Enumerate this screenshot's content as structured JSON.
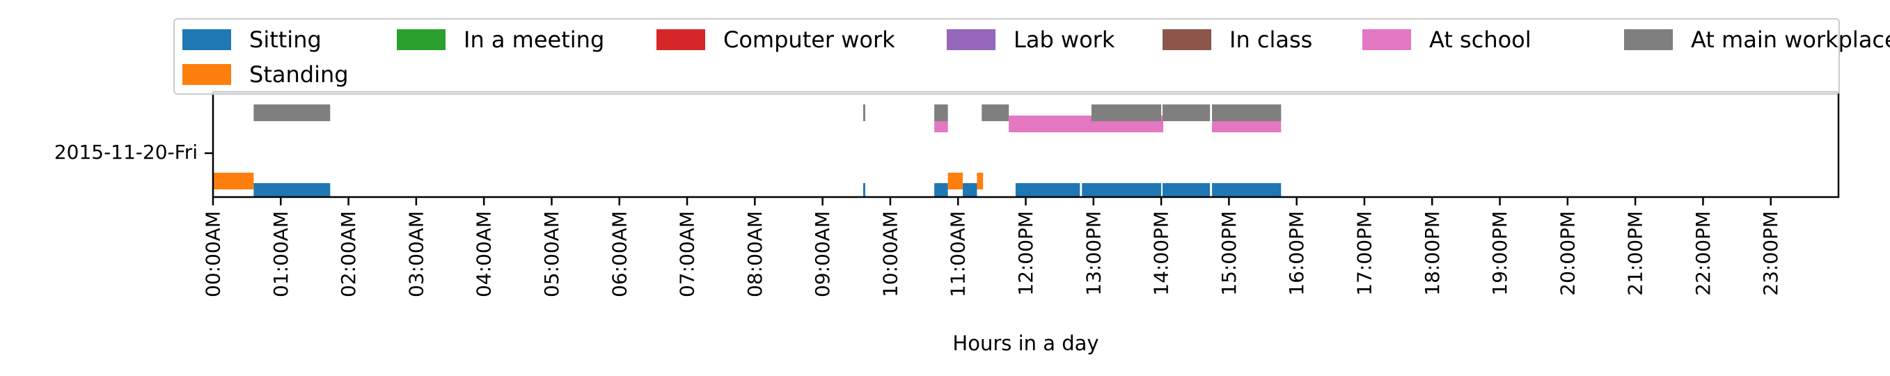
{
  "chart_data": {
    "type": "timeline",
    "title": "",
    "xlabel": "Hours in a day",
    "ylabel": "",
    "xlim_hours": [
      0,
      24
    ],
    "y_categories": [
      "2015-11-20-Fri"
    ],
    "x_ticks": [
      {
        "hour": 0,
        "label": "00:00AM"
      },
      {
        "hour": 1,
        "label": "01:00AM"
      },
      {
        "hour": 2,
        "label": "02:00AM"
      },
      {
        "hour": 3,
        "label": "03:00AM"
      },
      {
        "hour": 4,
        "label": "04:00AM"
      },
      {
        "hour": 5,
        "label": "05:00AM"
      },
      {
        "hour": 6,
        "label": "06:00AM"
      },
      {
        "hour": 7,
        "label": "07:00AM"
      },
      {
        "hour": 8,
        "label": "08:00AM"
      },
      {
        "hour": 9,
        "label": "09:00AM"
      },
      {
        "hour": 10,
        "label": "10:00AM"
      },
      {
        "hour": 11,
        "label": "11:00AM"
      },
      {
        "hour": 12,
        "label": "12:00PM"
      },
      {
        "hour": 13,
        "label": "13:00PM"
      },
      {
        "hour": 14,
        "label": "14:00PM"
      },
      {
        "hour": 15,
        "label": "15:00PM"
      },
      {
        "hour": 16,
        "label": "16:00PM"
      },
      {
        "hour": 17,
        "label": "17:00PM"
      },
      {
        "hour": 18,
        "label": "18:00PM"
      },
      {
        "hour": 19,
        "label": "19:00PM"
      },
      {
        "hour": 20,
        "label": "20:00PM"
      },
      {
        "hour": 21,
        "label": "21:00PM"
      },
      {
        "hour": 22,
        "label": "22:00PM"
      },
      {
        "hour": 23,
        "label": "23:00PM"
      }
    ],
    "legend": {
      "placement": "top",
      "entries": [
        {
          "name": "Sitting",
          "color": "#1f77b4"
        },
        {
          "name": "In a meeting",
          "color": "#2ca02c"
        },
        {
          "name": "Computer work",
          "color": "#d62728"
        },
        {
          "name": "Lab work",
          "color": "#9467bd"
        },
        {
          "name": "In class",
          "color": "#8c564b"
        },
        {
          "name": "At school",
          "color": "#e377c2"
        },
        {
          "name": "At main workplace",
          "color": "#7f7f7f"
        },
        {
          "name": "Standing",
          "color": "#ff7f0e"
        }
      ]
    },
    "series": [
      {
        "name": "Sitting",
        "color": "#1f77b4",
        "intervals": [
          [
            0.6,
            1.73
          ],
          [
            9.6,
            9.63
          ],
          [
            10.65,
            10.85
          ],
          [
            11.07,
            11.28
          ],
          [
            11.85,
            12.8
          ],
          [
            12.83,
            14.0
          ],
          [
            14.02,
            14.72
          ],
          [
            14.75,
            15.77
          ]
        ]
      },
      {
        "name": "Standing",
        "color": "#ff7f0e",
        "intervals": [
          [
            0.0,
            0.6
          ],
          [
            10.85,
            11.07
          ],
          [
            11.28,
            11.37
          ]
        ]
      },
      {
        "name": "At school",
        "color": "#e377c2",
        "intervals": [
          [
            10.65,
            10.85
          ],
          [
            11.75,
            14.03
          ],
          [
            14.75,
            15.77
          ]
        ]
      },
      {
        "name": "At main workplace",
        "color": "#7f7f7f",
        "intervals": [
          [
            0.6,
            1.73
          ],
          [
            9.6,
            9.63
          ],
          [
            10.65,
            10.85
          ],
          [
            11.35,
            11.75
          ],
          [
            12.97,
            14.0
          ],
          [
            14.02,
            14.72
          ],
          [
            14.75,
            15.77
          ]
        ]
      },
      {
        "name": "In a meeting",
        "color": "#2ca02c",
        "intervals": []
      },
      {
        "name": "Computer work",
        "color": "#d62728",
        "intervals": []
      },
      {
        "name": "Lab work",
        "color": "#9467bd",
        "intervals": []
      },
      {
        "name": "In class",
        "color": "#8c564b",
        "intervals": []
      }
    ]
  }
}
